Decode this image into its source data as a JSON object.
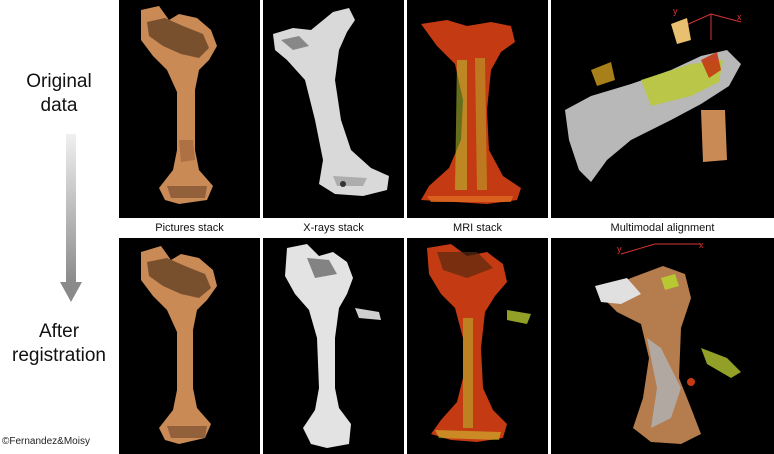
{
  "row_labels": {
    "original_line1": "Original",
    "original_line2": "data",
    "after_line1": "After",
    "after_line2": "registration"
  },
  "captions": {
    "pictures": "Pictures stack",
    "xrays": "X-rays stack",
    "mri": "MRI stack",
    "multimodal": "Multimodal alignment"
  },
  "axis_labels": {
    "x": "x",
    "y": "y"
  },
  "copyright": "©Fernandez&Moisy",
  "colors": {
    "panel_bg": "#000000",
    "bone_photo": "#c98a56",
    "bone_dark": "#5a3a22",
    "xray": "#d9d9d9",
    "mri_red": "#c43a12",
    "mri_yellow": "#b8c832",
    "arrow": "#9a9a9a",
    "axis": "#d33333"
  }
}
